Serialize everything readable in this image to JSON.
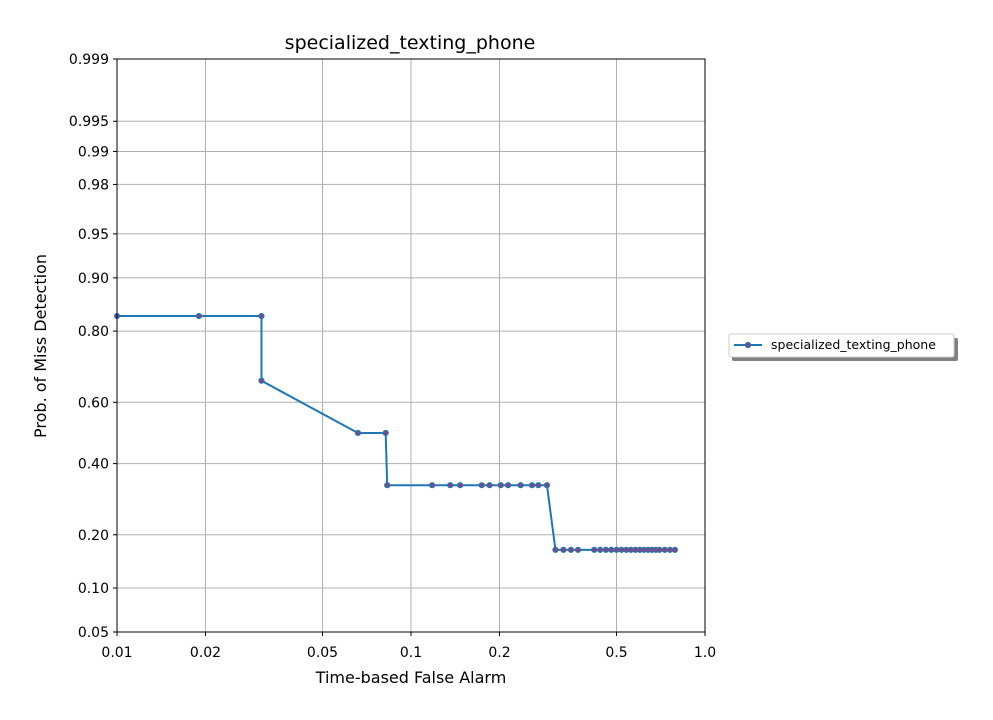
{
  "chart_data": {
    "type": "line",
    "title": "specialized_texting_phone",
    "xlabel": "Time-based False Alarm",
    "ylabel": "Prob. of Miss Detection",
    "x_scale": "log",
    "y_scale": "probit",
    "xlim": [
      0.01,
      1.0
    ],
    "ylim": [
      0.05,
      0.999
    ],
    "grid": true,
    "legend_position": "right-outside",
    "x_ticks": [
      {
        "value": 0.01,
        "label": "0.01"
      },
      {
        "value": 0.02,
        "label": "0.02"
      },
      {
        "value": 0.05,
        "label": "0.05"
      },
      {
        "value": 0.1,
        "label": "0.1"
      },
      {
        "value": 0.2,
        "label": "0.2"
      },
      {
        "value": 0.5,
        "label": "0.5"
      },
      {
        "value": 1.0,
        "label": "1.0"
      }
    ],
    "y_ticks": [
      {
        "value": 0.999,
        "label": "0.999"
      },
      {
        "value": 0.995,
        "label": "0.995"
      },
      {
        "value": 0.99,
        "label": "0.99"
      },
      {
        "value": 0.98,
        "label": "0.98"
      },
      {
        "value": 0.95,
        "label": "0.95"
      },
      {
        "value": 0.9,
        "label": "0.90"
      },
      {
        "value": 0.8,
        "label": "0.80"
      },
      {
        "value": 0.6,
        "label": "0.60"
      },
      {
        "value": 0.4,
        "label": "0.40"
      },
      {
        "value": 0.2,
        "label": "0.20"
      },
      {
        "value": 0.1,
        "label": "0.10"
      },
      {
        "value": 0.05,
        "label": "0.05"
      }
    ],
    "series": [
      {
        "name": "specialized_texting_phone",
        "color": "#1f77b4",
        "marker_face_color": "#7a4a8a",
        "points": [
          [
            0.0,
            0.833
          ],
          [
            0.019,
            0.833
          ],
          [
            0.031,
            0.833
          ],
          [
            0.031,
            0.667
          ],
          [
            0.066,
            0.5
          ],
          [
            0.082,
            0.5
          ],
          [
            0.083,
            0.333
          ],
          [
            0.118,
            0.333
          ],
          [
            0.136,
            0.333
          ],
          [
            0.147,
            0.333
          ],
          [
            0.174,
            0.333
          ],
          [
            0.185,
            0.333
          ],
          [
            0.202,
            0.333
          ],
          [
            0.214,
            0.333
          ],
          [
            0.236,
            0.333
          ],
          [
            0.258,
            0.333
          ],
          [
            0.271,
            0.333
          ],
          [
            0.29,
            0.333
          ],
          [
            0.31,
            0.167
          ],
          [
            0.33,
            0.167
          ],
          [
            0.35,
            0.167
          ],
          [
            0.37,
            0.167
          ],
          [
            0.42,
            0.167
          ],
          [
            0.44,
            0.167
          ],
          [
            0.46,
            0.167
          ],
          [
            0.48,
            0.167
          ],
          [
            0.5,
            0.167
          ],
          [
            0.52,
            0.167
          ],
          [
            0.54,
            0.167
          ],
          [
            0.56,
            0.167
          ],
          [
            0.58,
            0.167
          ],
          [
            0.6,
            0.167
          ],
          [
            0.62,
            0.167
          ],
          [
            0.64,
            0.167
          ],
          [
            0.66,
            0.167
          ],
          [
            0.68,
            0.167
          ],
          [
            0.7,
            0.167
          ],
          [
            0.73,
            0.167
          ],
          [
            0.76,
            0.167
          ],
          [
            0.79,
            0.167
          ]
        ]
      }
    ]
  }
}
